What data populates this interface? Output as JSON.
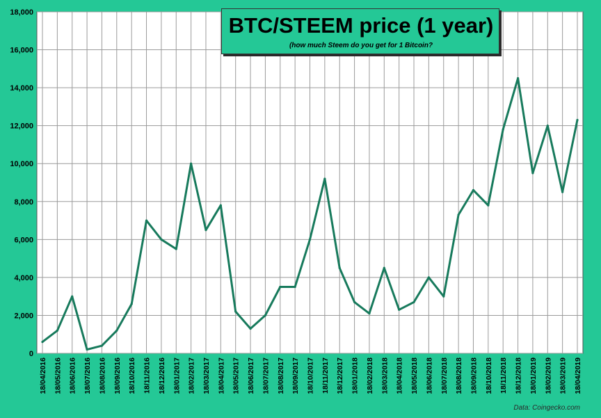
{
  "chart_data": {
    "type": "line",
    "title": "BTC/STEEM price (1 year)",
    "subtitle": "(how much Steem do you get for 1 Bitcoin?",
    "credit": "Data: Coingecko.com",
    "ylim": [
      0,
      18000
    ],
    "y_ticks": [
      "0",
      "2,000",
      "4,000",
      "6,000",
      "8,000",
      "10,000",
      "12,000",
      "14,000",
      "16,000",
      "18,000"
    ],
    "x_ticks": [
      "18/04/2016",
      "18/05/2016",
      "18/06/2016",
      "18/07/2016",
      "18/08/2016",
      "18/09/2016",
      "18/10/2016",
      "18/11/2016",
      "18/12/2016",
      "18/01/2017",
      "18/02/2017",
      "18/03/2017",
      "18/04/2017",
      "18/05/2017",
      "18/06/2017",
      "18/07/2017",
      "18/08/2017",
      "18/09/2017",
      "18/10/2017",
      "18/11/2017",
      "18/12/2017",
      "18/01/2018",
      "18/02/2018",
      "18/03/2018",
      "18/04/2018",
      "18/05/2018",
      "18/06/2018",
      "18/07/2018",
      "18/08/2018",
      "18/09/2018",
      "18/10/2018",
      "18/11/2018",
      "18/12/2018",
      "18/01/2019",
      "18/02/2019",
      "18/03/2019",
      "18/04/2019"
    ],
    "grid": true,
    "colors": {
      "line": "#177a5c",
      "background": "#24c896",
      "plot": "#ffffff",
      "grid": "#9a9a9a"
    },
    "series": [
      {
        "x": [
          "18/04/2016",
          "18/05/2016",
          "18/06/2016",
          "18/07/2016",
          "18/08/2016",
          "18/09/2016",
          "18/10/2016",
          "18/11/2016",
          "18/12/2016",
          "18/01/2017",
          "18/02/2017",
          "18/03/2017",
          "18/04/2017",
          "18/05/2017",
          "18/06/2017",
          "18/07/2017",
          "18/08/2017",
          "18/09/2017",
          "18/10/2017",
          "18/11/2017",
          "18/12/2017",
          "18/01/2018",
          "18/02/2018",
          "18/03/2018",
          "18/04/2018",
          "18/05/2018",
          "18/06/2018",
          "18/07/2018",
          "18/08/2018",
          "18/09/2018",
          "18/10/2018",
          "18/11/2018",
          "18/12/2018",
          "18/01/2019",
          "18/02/2019",
          "18/03/2019",
          "18/04/2019"
        ],
        "values": [
          600,
          1200,
          3000,
          200,
          400,
          1200,
          2600,
          7000,
          6000,
          5500,
          10000,
          6500,
          7800,
          2200,
          1300,
          2000,
          3500,
          3500,
          6000,
          9200,
          4500,
          2700,
          2100,
          4500,
          2300,
          2700,
          4000,
          3000,
          7300,
          8600,
          7800,
          11800,
          14500,
          9500,
          12000,
          8500,
          12300
        ]
      }
    ]
  }
}
